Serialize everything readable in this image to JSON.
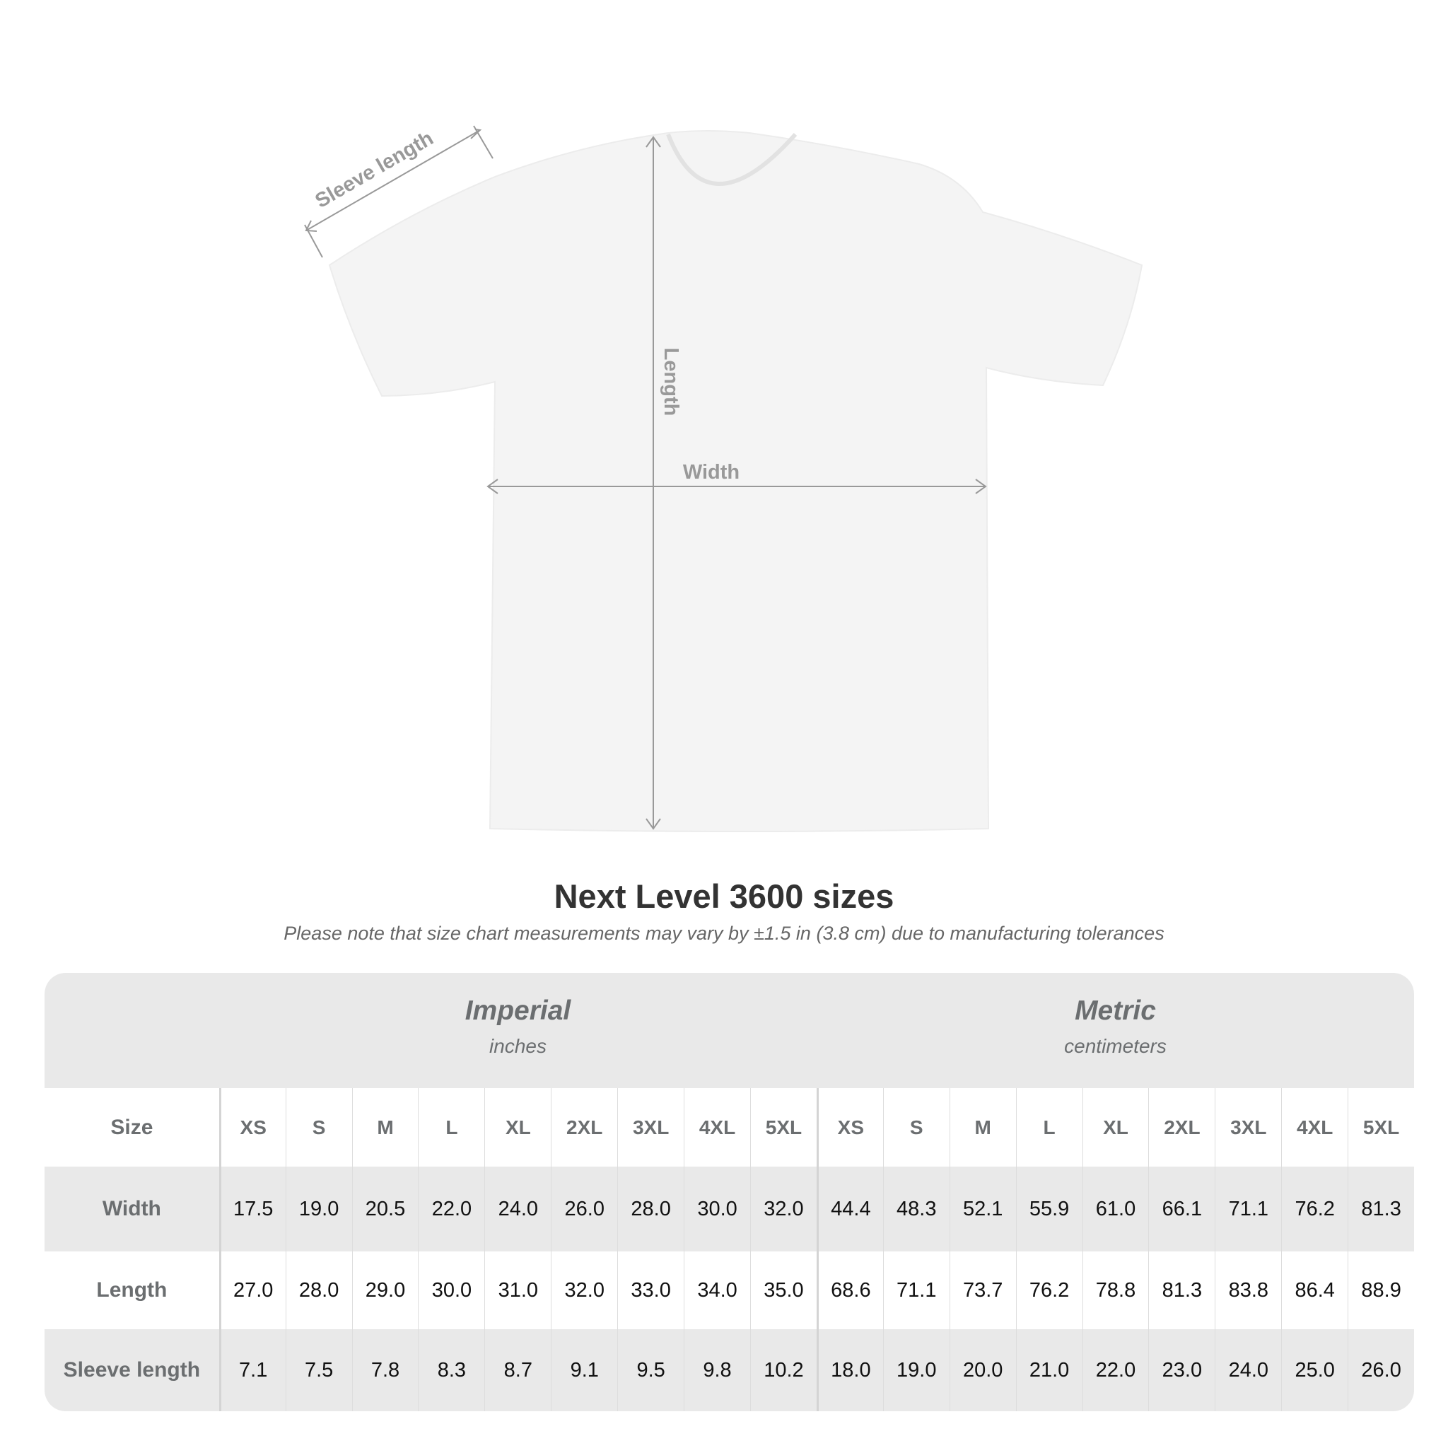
{
  "diagram": {
    "labels": {
      "sleeve": "Sleeve length",
      "length": "Length",
      "width": "Width"
    }
  },
  "title": "Next Level 3600 sizes",
  "subtitle": "Please note that size chart measurements may vary by ±1.5 in (3.8 cm) due to manufacturing tolerances",
  "table": {
    "imperial": {
      "name": "Imperial",
      "unit": "inches"
    },
    "metric": {
      "name": "Metric",
      "unit": "centimeters"
    },
    "size_label": "Size",
    "sizes": [
      "XS",
      "S",
      "M",
      "L",
      "XL",
      "2XL",
      "3XL",
      "4XL",
      "5XL"
    ],
    "rows": [
      {
        "label": "Width",
        "imperial": [
          "17.5",
          "19.0",
          "20.5",
          "22.0",
          "24.0",
          "26.0",
          "28.0",
          "30.0",
          "32.0"
        ],
        "metric": [
          "44.4",
          "48.3",
          "52.1",
          "55.9",
          "61.0",
          "66.1",
          "71.1",
          "76.2",
          "81.3"
        ]
      },
      {
        "label": "Length",
        "imperial": [
          "27.0",
          "28.0",
          "29.0",
          "30.0",
          "31.0",
          "32.0",
          "33.0",
          "34.0",
          "35.0"
        ],
        "metric": [
          "68.6",
          "71.1",
          "73.7",
          "76.2",
          "78.8",
          "81.3",
          "83.8",
          "86.4",
          "88.9"
        ]
      },
      {
        "label": "Sleeve length",
        "imperial": [
          "7.1",
          "7.5",
          "7.8",
          "8.3",
          "8.7",
          "9.1",
          "9.5",
          "9.8",
          "10.2"
        ],
        "metric": [
          "18.0",
          "19.0",
          "20.0",
          "21.0",
          "22.0",
          "23.0",
          "24.0",
          "25.0",
          "26.0"
        ]
      }
    ]
  }
}
